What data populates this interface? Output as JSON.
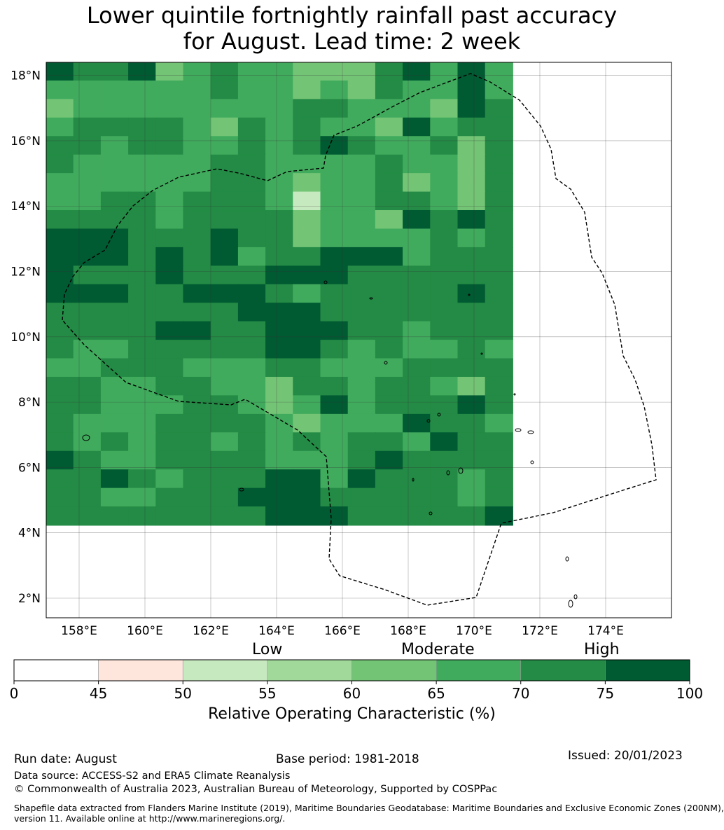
{
  "title": {
    "line1": "Lower quintile fortnightly rainfall past accuracy",
    "line2": "for August. Lead time: 2 week"
  },
  "map": {
    "lon_range": [
      157.0,
      176.0
    ],
    "lat_range": [
      1.4,
      18.4
    ],
    "cell_size_deg": 0.833,
    "lon_ticks": [
      "158°E",
      "160°E",
      "162°E",
      "164°E",
      "166°E",
      "168°E",
      "170°E",
      "172°E",
      "174°E"
    ],
    "lat_ticks": [
      "18°N",
      "16°N",
      "14°N",
      "12°N",
      "10°N",
      "8°N",
      "6°N",
      "4°N",
      "2°N"
    ],
    "grid_values": [
      "76674565544467575",
      "55555565545465575",
      "45555555566555476",
      "56666546565547566",
      "66566556567655646",
      "65555566555565546",
      "55555566545564546",
      "55665666525566546",
      "66665666645547676",
      "77766676645555656",
      "77767675667775666",
      "76667666777666666",
      "77766777656666676",
      "66666667776666666",
      "66667766777665666",
      "65566666776565565",
      "55666555665556666",
      "66556655466566546",
      "66555665457566676",
      "65556666545557665",
      "65656656565665766",
      "76556666555676666",
      "66765666775766656",
      "66556667776666656",
      "66666666777666667"
    ]
  },
  "colorbar": {
    "category_labels": [
      "Low",
      "Moderate",
      "High"
    ],
    "tick_labels": [
      "0",
      "45",
      "50",
      "55",
      "60",
      "65",
      "70",
      "75",
      "100"
    ],
    "colors": [
      "#ffffff",
      "#fee6dc",
      "#c7e9c0",
      "#a1d99b",
      "#74c476",
      "#41ab5d",
      "#238b45",
      "#005a32"
    ],
    "label": "Relative Operating Characteristic (%)"
  },
  "footer": {
    "run_date": "Run date: August",
    "base_period": "Base period: 1981-2018",
    "issued": "Issued: 20/01/2023",
    "data_source": "Data source: ACCESS-S2 and ERA5 Climate Reanalysis",
    "copyright": "© Commonwealth of Australia 2023, Australian Bureau of Meteorology, Supported by COSPPac",
    "shapefile_line1": "Shapefile data extracted from Flanders Marine Institute (2019), Maritime Boundaries Geodatabase: Maritime Boundaries and Exclusive Economic Zones (200NM),",
    "shapefile_line2": "version 11. Available online at http://www.marineregions.org/."
  }
}
